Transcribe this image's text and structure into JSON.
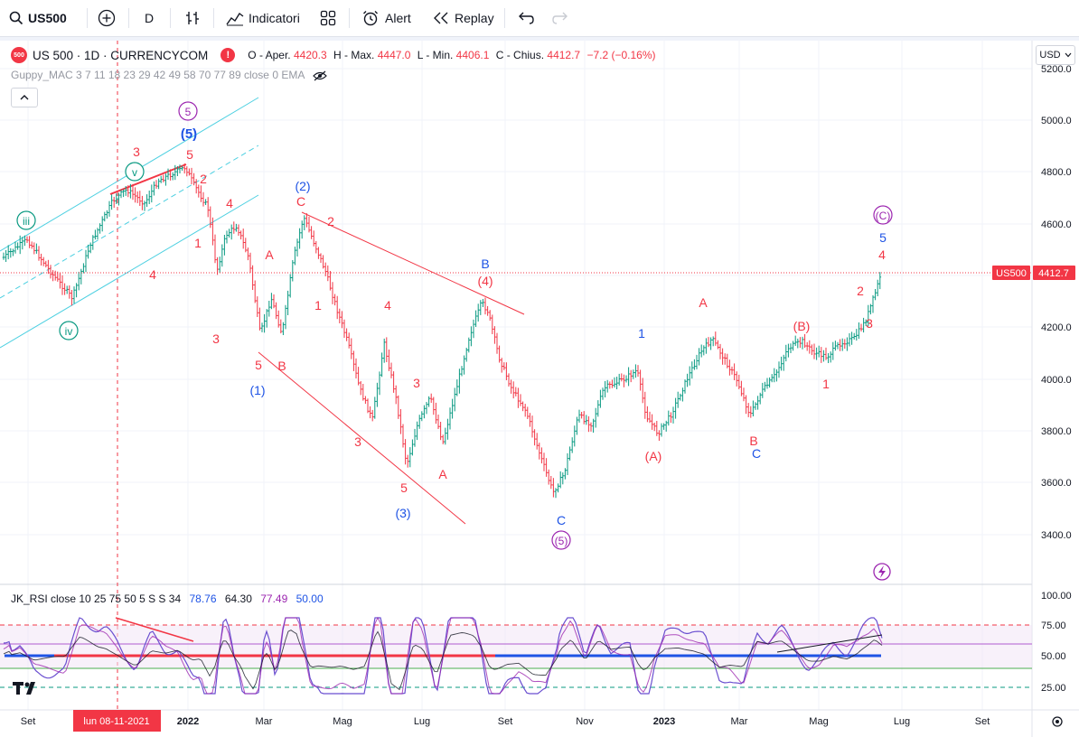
{
  "toolbar": {
    "symbol": "US500",
    "interval": "D",
    "indicators_label": "Indicatori",
    "alert_label": "Alert",
    "replay_label": "Replay"
  },
  "legend": {
    "badge": "500",
    "title": "US 500 · 1D · CURRENCYCOM",
    "open_label": "O - Aper.",
    "open": "4420.3",
    "high_label": "H - Max.",
    "high": "4447.0",
    "low_label": "L - Min.",
    "low": "4406.1",
    "close_label": "C - Chius.",
    "close": "4412.7",
    "change": "−7.2 (−0.16%)"
  },
  "indicator_main": "Guppy_MAC 3 7 11 18 23 29 42 49 58 70 77 89 close 0 EMA",
  "rsi_indicator": {
    "label": "JK_RSI close 10 25 75 50 5 S S 34",
    "v1": "78.76",
    "v2": "64.30",
    "v3": "77.49",
    "v4": "50.00"
  },
  "currency": "USD",
  "price_axis": [
    "5200.0",
    "5000.0",
    "4800.0",
    "4600.0",
    "4400.0",
    "4200.0",
    "4000.0",
    "3800.0",
    "3600.0",
    "3400.0"
  ],
  "rsi_axis": [
    "100.00",
    "75.00",
    "50.00",
    "25.00"
  ],
  "price_tag": {
    "symbol": "US500",
    "value": "4412.7"
  },
  "time_axis": [
    "Set",
    "2022",
    "Mar",
    "Mag",
    "Lug",
    "Set",
    "Nov",
    "2023",
    "Mar",
    "Mag",
    "Lug",
    "Set"
  ],
  "crosshair_date": "lun 08-11-2021",
  "wave_labels": [
    "iii",
    "iv",
    "v",
    "5",
    "(5)",
    "3",
    "5",
    "2",
    "4",
    "1",
    "4",
    "3",
    "(2)",
    "C",
    "2",
    "A",
    "1",
    "5",
    "B",
    "(1)",
    "3",
    "4",
    "3",
    "5",
    "(3)",
    "A",
    "B",
    "(4)",
    "C",
    "(5)",
    "1",
    "(A)",
    "A",
    "B",
    "C",
    "(B)",
    "1",
    "2",
    "3",
    "4",
    "5",
    "(C)",
    "2"
  ],
  "colors": {
    "up": "#089981",
    "down": "#f23645",
    "wave_red": "#f23645",
    "wave_blue": "#1e53e5",
    "wave_purple": "#9c27b0",
    "wave_teal": "#089981",
    "channel": "#4dd0e1"
  }
}
